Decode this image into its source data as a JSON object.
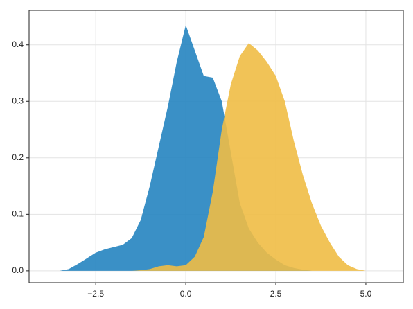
{
  "chart_data": {
    "type": "area",
    "x": [
      -3.5,
      -3.25,
      -3.0,
      -2.75,
      -2.5,
      -2.25,
      -2.0,
      -1.75,
      -1.5,
      -1.25,
      -1.0,
      -0.75,
      -0.5,
      -0.25,
      0,
      0.25,
      0.5,
      0.75,
      1.0,
      1.25,
      1.5,
      1.75,
      2.0,
      2.25,
      2.5,
      2.75,
      3.0,
      3.25,
      3.5,
      3.75,
      4.0,
      4.25,
      4.5,
      4.75,
      5.0
    ],
    "series": [
      {
        "color": "#2584c0",
        "values": [
          0,
          0.003,
          0.012,
          0.022,
          0.032,
          0.038,
          0.042,
          0.046,
          0.058,
          0.09,
          0.15,
          0.22,
          0.29,
          0.37,
          0.435,
          0.39,
          0.345,
          0.342,
          0.3,
          0.21,
          0.12,
          0.075,
          0.05,
          0.032,
          0.02,
          0.01,
          0.005,
          0.002,
          0,
          0,
          0,
          0,
          0,
          0,
          0
        ]
      },
      {
        "color": "#f0bc45",
        "values": [
          0,
          0,
          0,
          0,
          0,
          0,
          0,
          0,
          0,
          0.001,
          0.003,
          0.008,
          0.01,
          0.008,
          0.01,
          0.025,
          0.06,
          0.14,
          0.25,
          0.33,
          0.38,
          0.403,
          0.39,
          0.37,
          0.345,
          0.3,
          0.23,
          0.17,
          0.12,
          0.08,
          0.05,
          0.025,
          0.01,
          0.003,
          0
        ]
      }
    ],
    "xlim": [
      -4.35,
      6.04
    ],
    "ylim": [
      -0.021,
      0.461
    ],
    "xticks": [
      {
        "value": -2.5,
        "label": "−2.5"
      },
      {
        "value": 0,
        "label": "0.0"
      },
      2.5,
      {
        "value": 5,
        "label": "5.0"
      }
    ],
    "yticks": [
      {
        "value": 0,
        "label": "0.0"
      },
      0.1,
      0.2,
      0.3,
      0.4
    ],
    "grid": true
  }
}
